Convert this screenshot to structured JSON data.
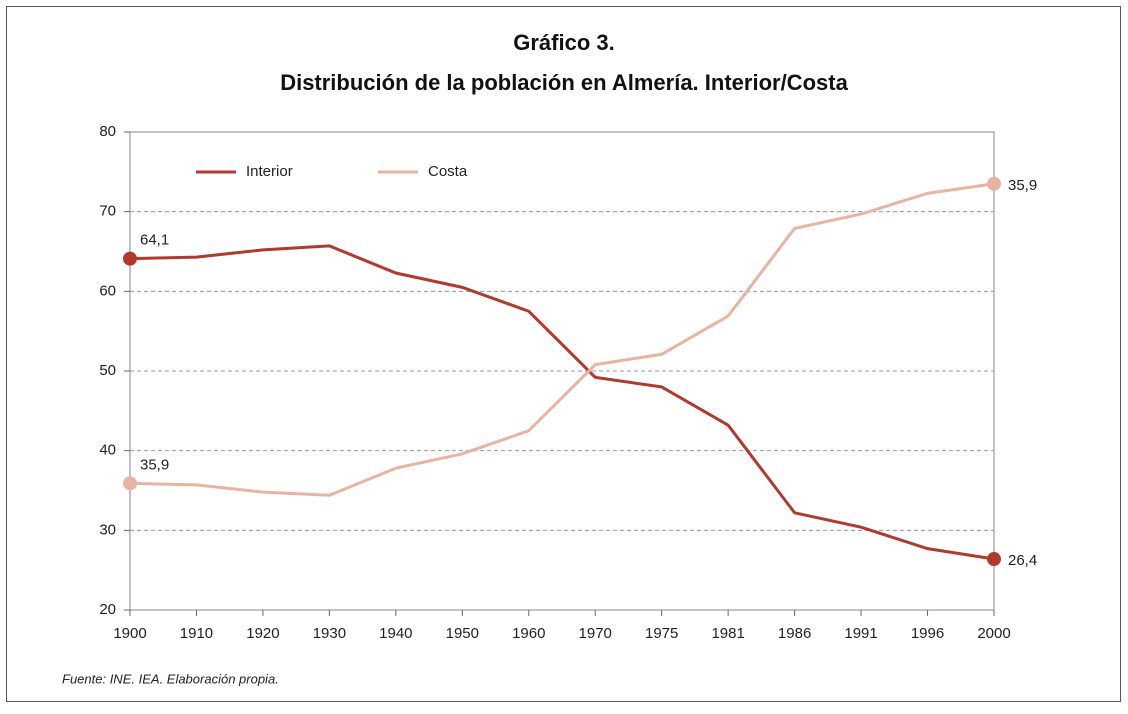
{
  "chart_data": {
    "type": "line",
    "title": "Gráfico 3.",
    "subtitle": "Distribución de la población en Almería. Interior/Costa",
    "source": "Fuente: INE. IEA. Elaboración propia.",
    "categories": [
      "1900",
      "1910",
      "1920",
      "1930",
      "1940",
      "1950",
      "1960",
      "1970",
      "1975",
      "1981",
      "1986",
      "1991",
      "1996",
      "2000"
    ],
    "series": [
      {
        "name": "Interior",
        "color": "#b03a2e",
        "values": [
          64.1,
          64.3,
          65.2,
          65.7,
          62.3,
          60.5,
          57.5,
          49.2,
          48.0,
          43.2,
          32.2,
          30.4,
          27.7,
          26.4
        ],
        "value_labels": [
          "64,1",
          null,
          null,
          null,
          null,
          null,
          null,
          null,
          null,
          null,
          null,
          null,
          null,
          "26,4"
        ]
      },
      {
        "name": "Costa",
        "color": "#e8b4a2",
        "values": [
          35.9,
          35.7,
          34.8,
          34.4,
          37.8,
          39.6,
          42.5,
          50.8,
          52.1,
          56.9,
          67.9,
          69.7,
          72.3,
          73.5
        ],
        "value_labels": [
          "35,9",
          null,
          null,
          null,
          null,
          null,
          null,
          null,
          null,
          null,
          null,
          null,
          null,
          null
        ]
      }
    ],
    "annotations": [
      "35,9"
    ],
    "ylim": [
      20,
      80
    ],
    "yticks": [
      20,
      30,
      40,
      50,
      60,
      70,
      80
    ],
    "grid": true,
    "legend": "top-left"
  }
}
